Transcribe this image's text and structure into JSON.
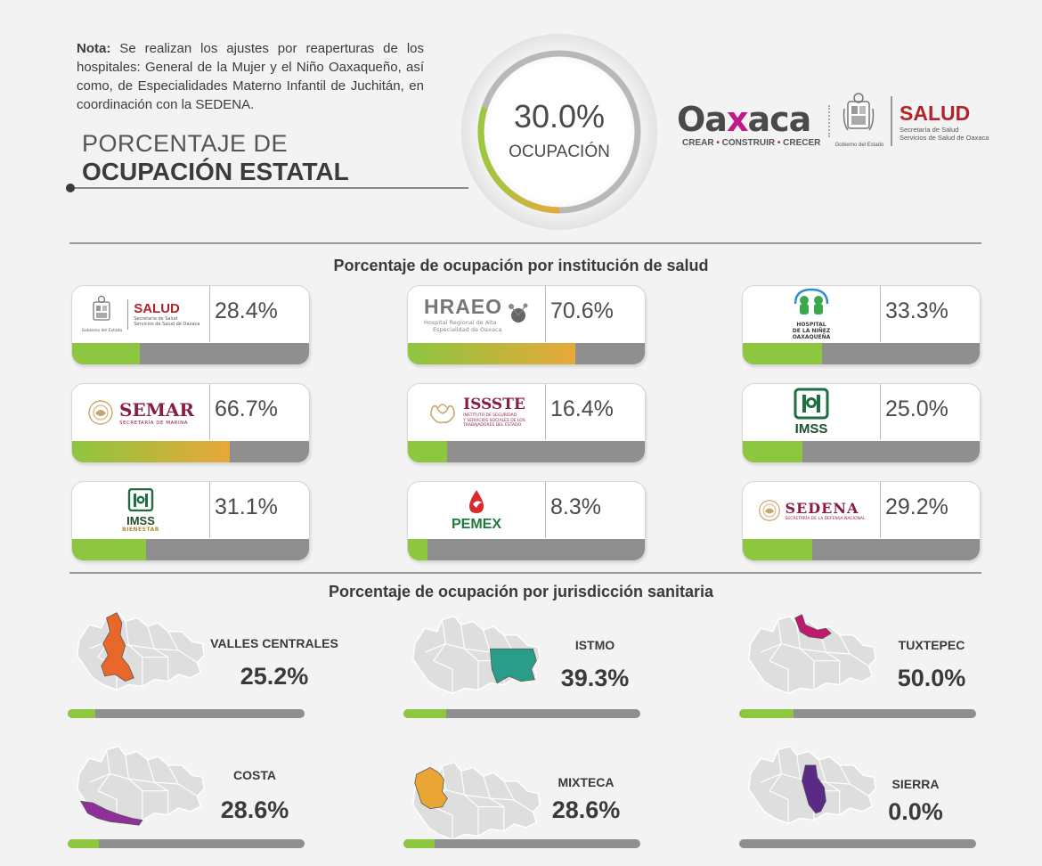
{
  "note": {
    "label": "Nota:",
    "text": " Se realizan los ajustes por reaperturas de los hospitales: General de la Mujer y el Niño Oaxaqueño, así como, de Especialidades Materno Infantil de Juchitán, en coordinación con la SEDENA."
  },
  "title": {
    "line1": "PORCENTAJE DE",
    "line2": "OCUPACIÓN ESTATAL"
  },
  "gauge": {
    "percent_label": "30.0%",
    "label": "OCUPACIÓN",
    "value": 30.0
  },
  "logos": {
    "oaxaca_a": "Oa",
    "oaxaca_x": "x",
    "oaxaca_b": "aca",
    "oaxaca_sub_1": "CREAR",
    "oaxaca_sub_2": "CONSTRUIR",
    "oaxaca_sub_3": "CRECER",
    "gobierno": "Gobierno del Estado",
    "salud": "SALUD",
    "salud_sub_1": "Secretaría de Salud",
    "salud_sub_2": "Servicios de Salud de Oaxaca"
  },
  "sections": {
    "institutions": "Porcentaje de ocupación por institución de salud",
    "jurisdictions": "Porcentaje de ocupación por jurisdicción sanitaria"
  },
  "institutions": [
    {
      "name": "SALUD",
      "sub1": "Secretaría de Salud",
      "sub2": "Servicios de Salud de Oaxaca",
      "sub3": "Gobierno del Estado",
      "percent_label": "28.4%",
      "value": 28.4,
      "icon": "oaxaca-shield-icon"
    },
    {
      "name": "HRAEO",
      "sub1": "Hospital Regional de Alta",
      "sub2": "Especialidad de Oaxaca",
      "percent_label": "70.6%",
      "value": 70.6,
      "icon": "hraeo-molecule-icon"
    },
    {
      "name": "HOSPITAL",
      "sub1": "DE LA NIÑEZ",
      "sub2": "OAXAQUEÑA",
      "percent_label": "33.3%",
      "value": 33.3,
      "icon": "children-hospital-icon"
    },
    {
      "name": "SEMAR",
      "sub1": "SECRETARÍA DE MARINA",
      "percent_label": "66.7%",
      "value": 66.7,
      "icon": "mexico-eagle-icon"
    },
    {
      "name": "ISSSTE",
      "sub1": "INSTITUTO DE SEGURIDAD",
      "sub2": "Y SERVICIOS SOCIALES DE LOS",
      "sub3": "TRABAJADORES DEL ESTADO",
      "percent_label": "16.4%",
      "value": 16.4,
      "icon": "issste-hands-icon"
    },
    {
      "name": "IMSS",
      "percent_label": "25.0%",
      "value": 25.0,
      "icon": "imss-eagle-icon"
    },
    {
      "name": "IMSS",
      "sub1": "BIENESTAR",
      "percent_label": "31.1%",
      "value": 31.1,
      "icon": "imss-bienestar-icon"
    },
    {
      "name": "PEMEX",
      "percent_label": "8.3%",
      "value": 8.3,
      "icon": "pemex-eagle-icon"
    },
    {
      "name": "SEDENA",
      "sub1": "SECRETARÍA DE LA DEFENSA NACIONAL",
      "percent_label": "29.2%",
      "value": 29.2,
      "icon": "mexico-eagle-icon"
    }
  ],
  "jurisdictions": [
    {
      "name": "VALLES CENTRALES",
      "percent_label": "25.2%",
      "value": 25.2,
      "color": "#e8672a"
    },
    {
      "name": "ISTMO",
      "percent_label": "39.3%",
      "value": 39.3,
      "color": "#2a9d8a"
    },
    {
      "name": "TUXTEPEC",
      "percent_label": "50.0%",
      "value": 50.0,
      "color": "#c0186f"
    },
    {
      "name": "COSTA",
      "percent_label": "28.6%",
      "value": 28.6,
      "color": "#8e2f9a"
    },
    {
      "name": "MIXTECA",
      "percent_label": "28.6%",
      "value": 28.6,
      "color": "#e9a634"
    },
    {
      "name": "SIERRA",
      "percent_label": "0.0%",
      "value": 0.0,
      "color": "#5b2a86"
    }
  ],
  "colors": {
    "green": "#8dc63f",
    "orange": "#e8a83a",
    "track": "#8f8f8f"
  }
}
